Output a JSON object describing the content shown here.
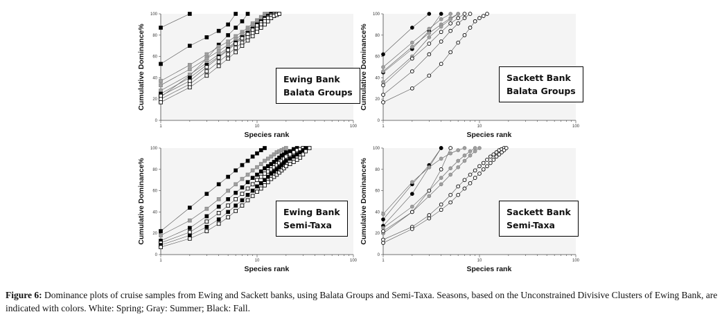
{
  "caption": {
    "label": "Figure 6:",
    "text": "Dominance plots of cruise samples from Ewing and Sackett banks, using Balata Groups and Semi-Taxa. Seasons, based on the Unconstrained Divisive Clusters of Ewing Bank, are indicated with colors. White: Spring; Gray: Summer; Black: Fall."
  },
  "colors": {
    "fall": "#000000",
    "summer": "#a0a0a0",
    "spring": "#ffffff"
  },
  "chart_data": [
    {
      "type": "line",
      "title": "Ewing Bank Balata Groups",
      "title_lines": [
        "Ewing Bank",
        "Balata Groups"
      ],
      "xlabel": "Species rank",
      "ylabel": "Cumulative Dominance%",
      "xscale": "log",
      "xlim": [
        1,
        100
      ],
      "ylim": [
        0,
        100
      ],
      "xticks": [
        "1",
        "10",
        "100"
      ],
      "yticks": [
        "0",
        "20",
        "40",
        "60",
        "80",
        "100"
      ],
      "grid": false,
      "marker": "square",
      "series": [
        {
          "season": "fall",
          "x": [
            1,
            2
          ],
          "y": [
            87,
            100
          ]
        },
        {
          "season": "fall",
          "x": [
            1,
            2,
            3,
            4,
            5,
            6
          ],
          "y": [
            53,
            70,
            78,
            84,
            90,
            100
          ]
        },
        {
          "season": "fall",
          "x": [
            1,
            2,
            3,
            4,
            5,
            6,
            7,
            8
          ],
          "y": [
            22,
            42,
            58,
            71,
            80,
            87,
            93,
            100
          ]
        },
        {
          "season": "summer",
          "x": [
            1,
            2,
            3,
            4,
            5,
            6,
            7,
            8,
            9,
            10,
            11,
            12
          ],
          "y": [
            37,
            52,
            62,
            69,
            74,
            79,
            83,
            87,
            91,
            94,
            97,
            100
          ]
        },
        {
          "season": "summer",
          "x": [
            1,
            2,
            3,
            4,
            5,
            6,
            7,
            8,
            9,
            10,
            11,
            12,
            13
          ],
          "y": [
            33,
            48,
            58,
            65,
            71,
            76,
            81,
            85,
            89,
            93,
            96,
            98,
            100
          ]
        },
        {
          "season": "summer",
          "x": [
            1,
            2,
            3,
            4,
            5,
            6,
            7,
            8,
            9,
            10,
            11,
            12,
            13,
            14
          ],
          "y": [
            28,
            43,
            54,
            62,
            68,
            74,
            79,
            83,
            87,
            91,
            94,
            97,
            99,
            100
          ]
        },
        {
          "season": "fall",
          "x": [
            1,
            2,
            3,
            4,
            5,
            6,
            7,
            8,
            9,
            10,
            11,
            12,
            13,
            14
          ],
          "y": [
            25,
            40,
            52,
            60,
            67,
            73,
            78,
            82,
            86,
            90,
            93,
            96,
            98,
            100
          ]
        },
        {
          "season": "spring",
          "x": [
            1,
            2,
            3,
            4,
            5,
            6,
            7,
            8,
            9,
            10,
            11,
            12,
            13,
            14,
            15
          ],
          "y": [
            23,
            37,
            50,
            59,
            66,
            72,
            77,
            81,
            85,
            89,
            92,
            95,
            97,
            99,
            100
          ]
        },
        {
          "season": "spring",
          "x": [
            1,
            2,
            3,
            4,
            5,
            6,
            7,
            8,
            9,
            10,
            11,
            12,
            13,
            14,
            15,
            16
          ],
          "y": [
            20,
            34,
            46,
            55,
            62,
            68,
            73,
            78,
            82,
            86,
            90,
            93,
            96,
            98,
            99,
            100
          ]
        },
        {
          "season": "spring",
          "x": [
            1,
            2,
            3,
            4,
            5,
            6,
            7,
            8,
            9,
            10,
            11,
            12,
            13,
            14,
            15,
            16,
            17
          ],
          "y": [
            17,
            31,
            42,
            51,
            58,
            64,
            70,
            75,
            79,
            83,
            87,
            90,
            93,
            96,
            98,
            99,
            100
          ]
        }
      ]
    },
    {
      "type": "line",
      "title": "Sackett Bank Balata Groups",
      "title_lines": [
        "Sackett Bank",
        "Balata Groups"
      ],
      "xlabel": "Species rank",
      "ylabel": "Cumulative Dominance%",
      "xscale": "log",
      "xlim": [
        1,
        100
      ],
      "ylim": [
        0,
        100
      ],
      "xticks": [
        "1",
        "10",
        "100"
      ],
      "yticks": [
        "0",
        "20",
        "40",
        "60",
        "80",
        "100"
      ],
      "grid": false,
      "marker": "circle",
      "series": [
        {
          "season": "fall",
          "x": [
            1,
            2,
            3
          ],
          "y": [
            62,
            87,
            100
          ]
        },
        {
          "season": "fall",
          "x": [
            1,
            2,
            3,
            4
          ],
          "y": [
            45,
            67,
            84,
            100
          ]
        },
        {
          "season": "summer",
          "x": [
            1,
            2,
            3,
            4,
            5
          ],
          "y": [
            50,
            73,
            86,
            95,
            100
          ]
        },
        {
          "season": "summer",
          "x": [
            1,
            2,
            3,
            4,
            5,
            6
          ],
          "y": [
            46,
            69,
            82,
            90,
            96,
            100
          ]
        },
        {
          "season": "summer",
          "x": [
            1,
            2,
            3,
            4,
            5,
            6
          ],
          "y": [
            36,
            60,
            78,
            88,
            95,
            100
          ]
        },
        {
          "season": "spring",
          "x": [
            1,
            2,
            3,
            4,
            5,
            6,
            7
          ],
          "y": [
            33,
            58,
            72,
            83,
            91,
            96,
            100
          ]
        },
        {
          "season": "spring",
          "x": [
            1,
            2,
            3,
            4,
            5,
            6,
            7,
            8
          ],
          "y": [
            24,
            46,
            62,
            74,
            84,
            91,
            96,
            100
          ]
        },
        {
          "season": "spring",
          "x": [
            1,
            2,
            3,
            4,
            5,
            6,
            7,
            8,
            9,
            10,
            11,
            12
          ],
          "y": [
            17,
            30,
            42,
            53,
            64,
            73,
            80,
            87,
            93,
            96,
            98,
            100
          ]
        }
      ]
    },
    {
      "type": "line",
      "title": "Ewing Bank Semi-Taxa",
      "title_lines": [
        "Ewing Bank",
        "Semi-Taxa"
      ],
      "xlabel": "Species rank",
      "ylabel": "Cumulative Dominance%",
      "xscale": "log",
      "xlim": [
        1,
        100
      ],
      "ylim": [
        0,
        100
      ],
      "xticks": [
        "1",
        "10",
        "100"
      ],
      "yticks": [
        "0",
        "20",
        "40",
        "60",
        "80",
        "100"
      ],
      "grid": false,
      "marker": "square",
      "series": [
        {
          "season": "fall",
          "x": [
            1,
            2,
            3,
            4,
            5,
            6,
            7,
            8,
            9,
            10,
            11,
            12
          ],
          "y": [
            22,
            44,
            57,
            66,
            73,
            79,
            84,
            88,
            92,
            95,
            98,
            100
          ]
        },
        {
          "season": "summer",
          "x": [
            1,
            2,
            3,
            4,
            5,
            6,
            7,
            8,
            9,
            10,
            11,
            12,
            13,
            14,
            15,
            16,
            17,
            18,
            19,
            20
          ],
          "y": [
            18,
            32,
            43,
            52,
            60,
            66,
            71,
            75,
            79,
            82,
            85,
            88,
            90,
            92,
            94,
            96,
            97,
            98,
            99,
            100
          ]
        },
        {
          "season": "fall",
          "x": [
            1,
            2,
            3,
            4,
            5,
            6,
            7,
            8,
            9,
            10,
            11,
            12,
            13,
            14,
            15,
            16,
            17,
            18,
            19,
            20,
            22,
            24,
            26
          ],
          "y": [
            13,
            25,
            36,
            45,
            52,
            58,
            63,
            68,
            72,
            75,
            78,
            81,
            83,
            85,
            87,
            89,
            91,
            93,
            94,
            96,
            97,
            99,
            100
          ]
        },
        {
          "season": "spring",
          "x": [
            1,
            2,
            3,
            4,
            5,
            6,
            7,
            8,
            9,
            10,
            11,
            12,
            13,
            14,
            15,
            16,
            17,
            18,
            19,
            20,
            22,
            24,
            26,
            28,
            30
          ],
          "y": [
            11,
            21,
            31,
            39,
            46,
            52,
            57,
            62,
            66,
            70,
            73,
            76,
            78,
            80,
            82,
            84,
            86,
            88,
            90,
            92,
            94,
            96,
            98,
            99,
            100
          ]
        },
        {
          "season": "fall",
          "x": [
            1,
            2,
            3,
            4,
            5,
            6,
            7,
            8,
            9,
            10,
            11,
            12,
            13,
            14,
            15,
            16,
            17,
            18,
            19,
            20,
            22,
            24,
            26,
            28,
            30,
            32
          ],
          "y": [
            9,
            18,
            26,
            33,
            40,
            46,
            51,
            56,
            60,
            64,
            67,
            70,
            73,
            76,
            78,
            80,
            82,
            84,
            86,
            88,
            90,
            92,
            94,
            96,
            98,
            100
          ]
        },
        {
          "season": "spring",
          "x": [
            1,
            2,
            3,
            4,
            5,
            6,
            7,
            8,
            9,
            10,
            11,
            12,
            13,
            14,
            15,
            16,
            17,
            18,
            19,
            20,
            22,
            24,
            26,
            28,
            30,
            32,
            35
          ],
          "y": [
            7,
            15,
            22,
            29,
            35,
            41,
            46,
            51,
            55,
            59,
            62,
            65,
            68,
            71,
            73,
            75,
            77,
            79,
            81,
            83,
            85,
            87,
            89,
            91,
            94,
            97,
            100
          ]
        }
      ]
    },
    {
      "type": "line",
      "title": "Sackett Bank Semi-Taxa",
      "title_lines": [
        "Sackett Bank",
        "Semi-Taxa"
      ],
      "xlabel": "Species rank",
      "ylabel": "Cumulative Dominance%",
      "xscale": "log",
      "xlim": [
        1,
        100
      ],
      "ylim": [
        0,
        100
      ],
      "xticks": [
        "1",
        "10",
        "100"
      ],
      "yticks": [
        "0",
        "20",
        "40",
        "60",
        "80",
        "100"
      ],
      "grid": false,
      "marker": "circle",
      "series": [
        {
          "season": "fall",
          "x": [
            1,
            2,
            3,
            4
          ],
          "y": [
            33,
            66,
            84,
            100
          ]
        },
        {
          "season": "fall",
          "x": [
            1,
            2,
            3,
            4
          ],
          "y": [
            27,
            57,
            82,
            100
          ]
        },
        {
          "season": "summer",
          "x": [
            1,
            2,
            3,
            4,
            5,
            6,
            7
          ],
          "y": [
            38,
            68,
            82,
            90,
            95,
            98,
            100
          ]
        },
        {
          "season": "summer",
          "x": [
            1,
            2,
            3,
            4,
            5,
            6,
            7,
            8,
            9
          ],
          "y": [
            25,
            45,
            60,
            72,
            81,
            88,
            93,
            97,
            100
          ]
        },
        {
          "season": "summer",
          "x": [
            1,
            2,
            3,
            4,
            5,
            6,
            7,
            8,
            9,
            10
          ],
          "y": [
            20,
            40,
            55,
            66,
            75,
            82,
            88,
            93,
            97,
            100
          ]
        },
        {
          "season": "spring",
          "x": [
            1,
            2,
            3,
            4,
            5
          ],
          "y": [
            22,
            40,
            60,
            80,
            100
          ]
        },
        {
          "season": "spring",
          "x": [
            1,
            2,
            3,
            4,
            5,
            6,
            7,
            8,
            9,
            10,
            11,
            12,
            13,
            14,
            15,
            16,
            17,
            18
          ],
          "y": [
            14,
            26,
            37,
            47,
            56,
            64,
            70,
            75,
            79,
            83,
            86,
            89,
            92,
            94,
            96,
            98,
            99,
            100
          ]
        },
        {
          "season": "spring",
          "x": [
            1,
            2,
            3,
            4,
            5,
            6,
            7,
            8,
            9,
            10,
            11,
            12,
            13,
            14,
            15,
            16,
            17,
            18,
            19
          ],
          "y": [
            11,
            24,
            34,
            42,
            49,
            56,
            62,
            67,
            72,
            76,
            80,
            83,
            86,
            89,
            92,
            94,
            96,
            98,
            100
          ]
        }
      ]
    }
  ]
}
